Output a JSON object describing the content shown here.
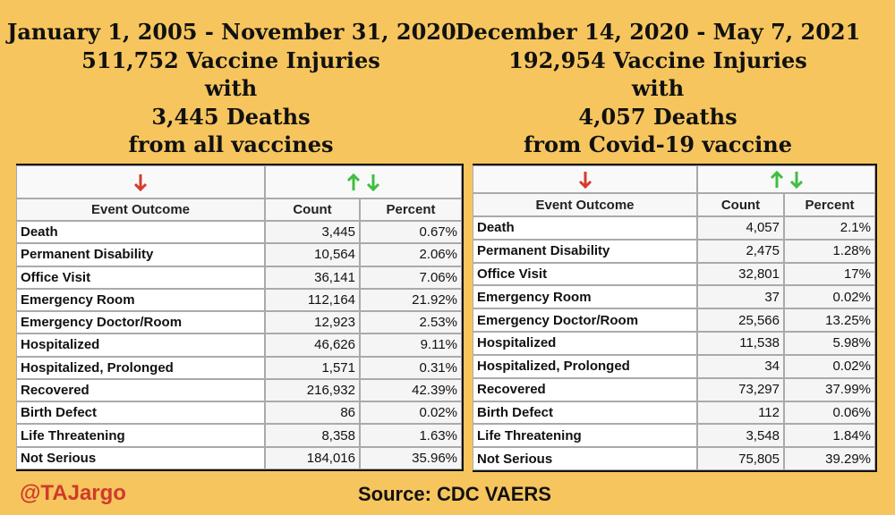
{
  "panels": [
    {
      "heading": [
        "January 1, 2005 - November 31, 2020",
        "511,752 Vaccine Injuries",
        "with",
        "3,445 Deaths",
        "from all vaccines"
      ],
      "table": {
        "header": [
          "Event Outcome",
          "Count",
          "Percent"
        ],
        "rows": [
          [
            "Death",
            "3,445",
            "0.67%"
          ],
          [
            "Permanent Disability",
            "10,564",
            "2.06%"
          ],
          [
            "Office Visit",
            "36,141",
            "7.06%"
          ],
          [
            "Emergency Room",
            "112,164",
            "21.92%"
          ],
          [
            "Emergency Doctor/Room",
            "12,923",
            "2.53%"
          ],
          [
            "Hospitalized",
            "46,626",
            "9.11%"
          ],
          [
            "Hospitalized, Prolonged",
            "1,571",
            "0.31%"
          ],
          [
            "Recovered",
            "216,932",
            "42.39%"
          ],
          [
            "Birth Defect",
            "86",
            "0.02%"
          ],
          [
            "Life Threatening",
            "8,358",
            "1.63%"
          ],
          [
            "Not Serious",
            "184,016",
            "35.96%"
          ]
        ]
      }
    },
    {
      "heading": [
        "December 14, 2020 - May 7, 2021",
        "192,954 Vaccine Injuries",
        "with",
        "4,057 Deaths",
        "from Covid-19 vaccine"
      ],
      "table": {
        "header": [
          "Event Outcome",
          "Count",
          "Percent"
        ],
        "rows": [
          [
            "Death",
            "4,057",
            "2.1%"
          ],
          [
            "Permanent Disability",
            "2,475",
            "1.28%"
          ],
          [
            "Office Visit",
            "32,801",
            "17%"
          ],
          [
            "Emergency Room",
            "37",
            "0.02%"
          ],
          [
            "Emergency Doctor/Room",
            "25,566",
            "13.25%"
          ],
          [
            "Hospitalized",
            "11,538",
            "5.98%"
          ],
          [
            "Hospitalized, Prolonged",
            "34",
            "0.02%"
          ],
          [
            "Recovered",
            "73,297",
            "37.99%"
          ],
          [
            "Birth Defect",
            "112",
            "0.06%"
          ],
          [
            "Life Threatening",
            "3,548",
            "1.84%"
          ],
          [
            "Not Serious",
            "75,805",
            "39.29%"
          ]
        ]
      }
    }
  ],
  "footer": {
    "handle": "@TAJargo",
    "source": "Source: CDC VAERS"
  }
}
